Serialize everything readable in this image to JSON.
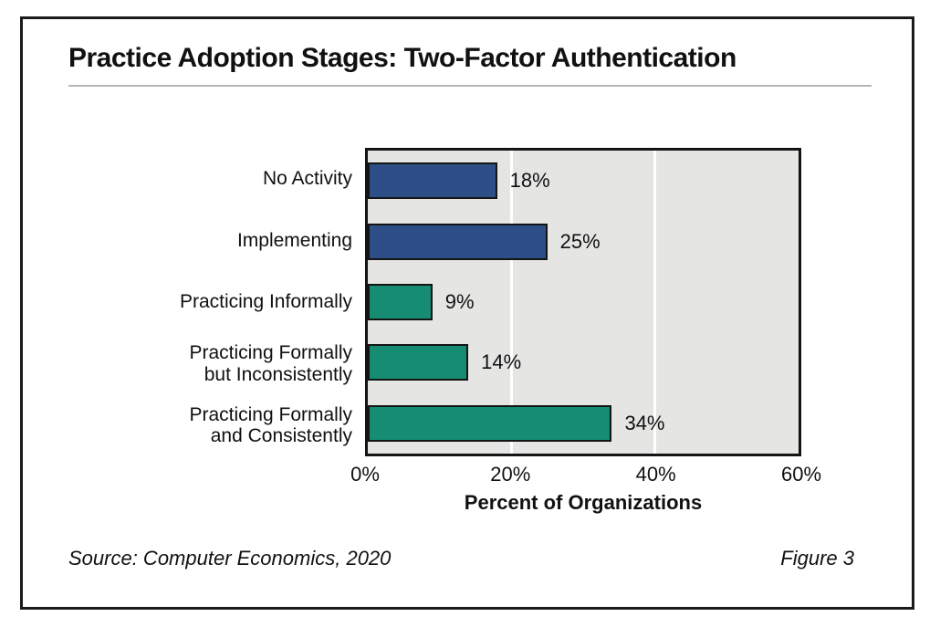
{
  "title": "Practice Adoption Stages: Two-Factor Authentication",
  "source": "Source: Computer Economics, 2020",
  "figure_label": "Figure 3",
  "colors": {
    "blue_bar": "#2D4E87",
    "green_bar": "#168C73",
    "plot_background": "#E5E5E4",
    "bar_outline": "#141414",
    "gridline": "#FFFFFF",
    "title_rule": "#B5B5B5"
  },
  "chart_data": {
    "type": "bar",
    "orientation": "horizontal",
    "title": "Practice Adoption Stages: Two-Factor Authentication",
    "categories": [
      "No Activity",
      "Implementing",
      "Practicing Informally",
      "Practicing Formally but Inconsistently",
      "Practicing Formally and Consistently"
    ],
    "category_lines": [
      [
        "No Activity"
      ],
      [
        "Implementing"
      ],
      [
        "Practicing Informally"
      ],
      [
        "Practicing Formally",
        "but Inconsistently"
      ],
      [
        "Practicing Formally",
        "and Consistently"
      ]
    ],
    "values": [
      18,
      25,
      9,
      14,
      34
    ],
    "value_labels": [
      "18%",
      "25%",
      "9%",
      "14%",
      "34%"
    ],
    "bar_colors": [
      "#2D4E87",
      "#2D4E87",
      "#168C73",
      "#168C73",
      "#168C73"
    ],
    "xlabel": "Percent of Organizations",
    "ylabel": "",
    "xlim": [
      0,
      60
    ],
    "x_ticks": [
      "0%",
      "20%",
      "40%",
      "60%"
    ],
    "x_tick_values": [
      0,
      20,
      40,
      60
    ],
    "gridlines": [
      20,
      40
    ],
    "grid_on": true,
    "legend": "none"
  }
}
